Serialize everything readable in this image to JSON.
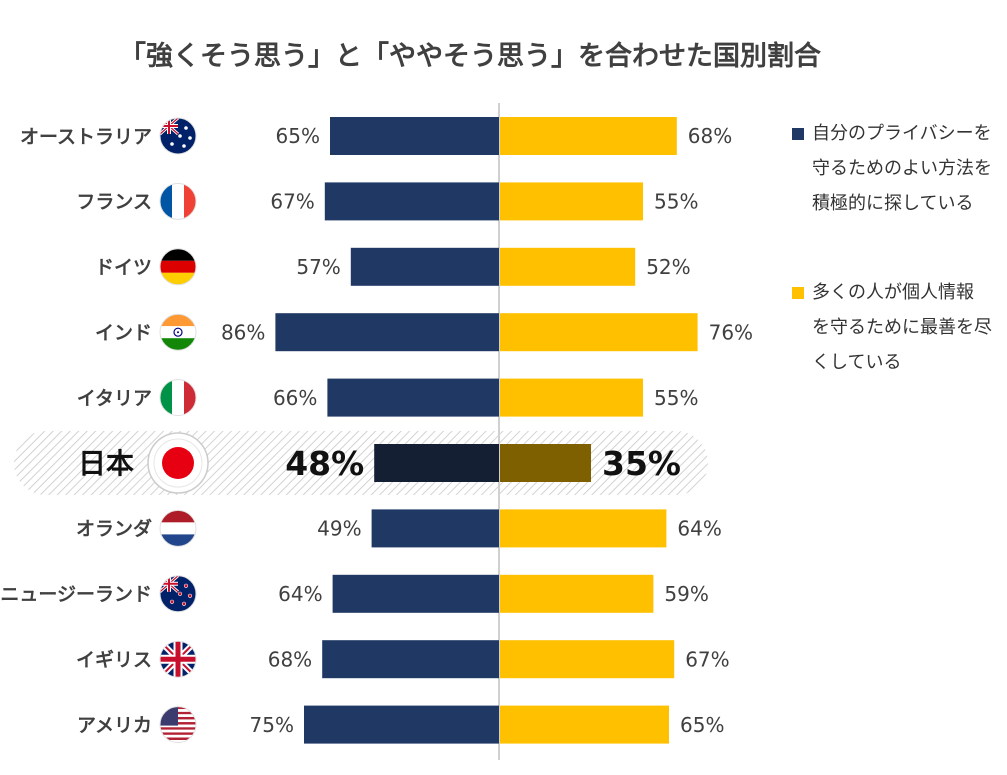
{
  "chart_data": {
    "type": "bar",
    "title": "「強くそう思う」と「ややそう思う」を合わせた国別割合",
    "categories": [
      "オーストラリア",
      "フランス",
      "ドイツ",
      "インド",
      "イタリア",
      "日本",
      "オランダ",
      "ニュージーランド",
      "イギリス",
      "アメリカ"
    ],
    "highlight_category": "日本",
    "series": [
      {
        "name": "自分のプライバシーを守るためのよい方法を積極的に探している",
        "values": [
          65,
          67,
          57,
          86,
          66,
          48,
          49,
          64,
          68,
          75
        ],
        "color": "#203864",
        "highlight_color": "#141F33",
        "direction": "left"
      },
      {
        "name": "多くの人が個人情報を守るために最善を尽くしている",
        "values": [
          68,
          55,
          52,
          76,
          55,
          35,
          64,
          59,
          67,
          65
        ],
        "color": "#FFC000",
        "highlight_color": "#7F6000",
        "direction": "right"
      }
    ],
    "value_suffix": "%",
    "flags": [
      "australia-flag",
      "france-flag",
      "germany-flag",
      "india-flag",
      "italy-flag",
      "japan-flag",
      "netherlands-flag",
      "new-zealand-flag",
      "uk-flag",
      "usa-flag"
    ],
    "grid": false,
    "legend_position": "right"
  },
  "legend": {
    "item1_lines": [
      "自分のプライバシーを",
      "守るためのよい方法を",
      "積極的に探している"
    ],
    "item2_lines": [
      "多くの人が個人情報",
      "を守るために最善を尽",
      "くしている"
    ]
  }
}
